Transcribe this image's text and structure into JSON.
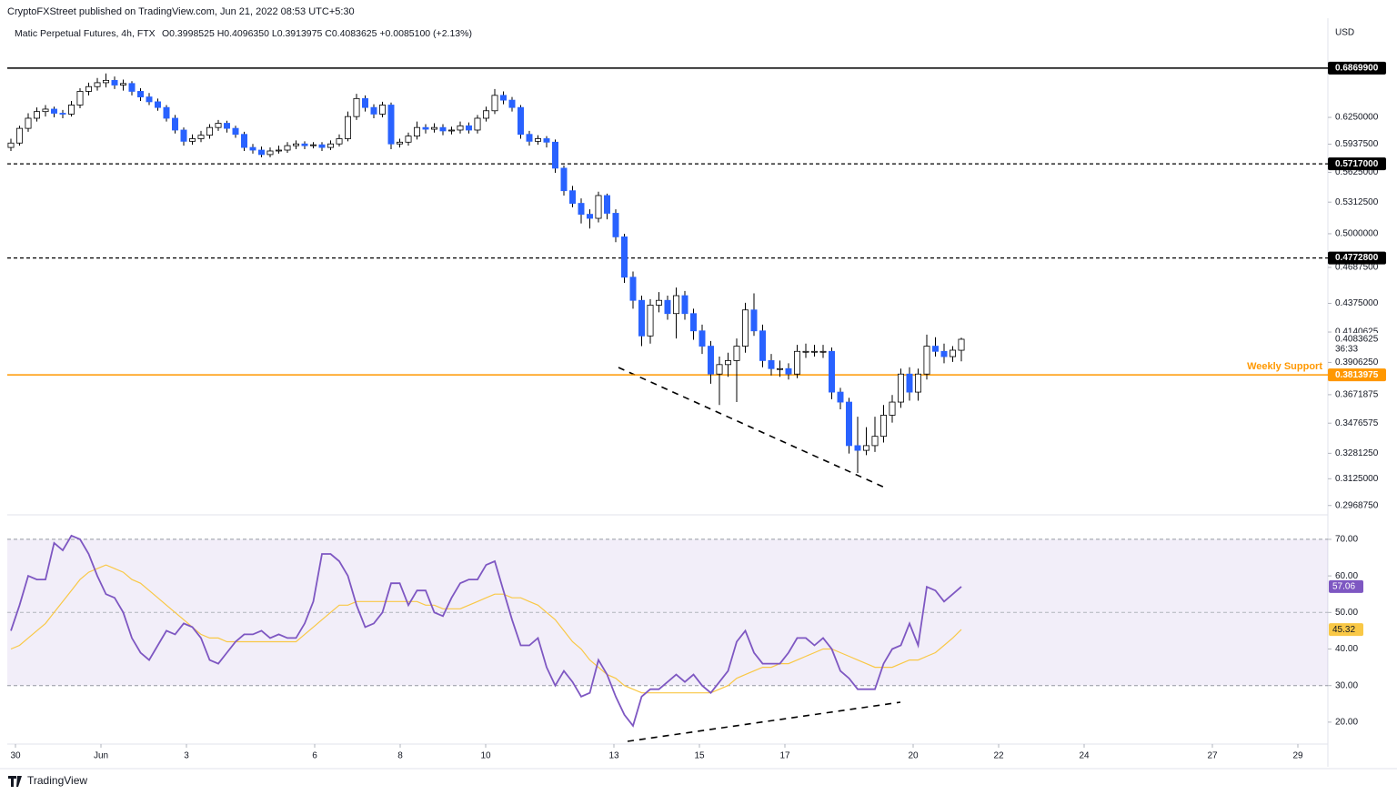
{
  "header": {
    "publisher": "CryptoFXStreet published on TradingView.com, Jun 21, 2022 08:53 UTC+5:30",
    "symbol": "Matic Perpetual Futures, 4h, FTX",
    "ohlc": "O0.3998525 H0.4096350 L0.3913975 C0.4083625 +0.0085100 (+2.13%)",
    "currency": "USD",
    "countdown": "36:33",
    "footer": "TradingView"
  },
  "chart_data": [
    {
      "type": "candlestick",
      "log_scale": true,
      "grid": false,
      "up_color": "#ffffff",
      "down_color": "#2962ff",
      "wick_color": "#000000",
      "ylim": [
        0.2916,
        0.756
      ],
      "yticks": [
        {
          "value": 0.625,
          "label": "0.6250000"
        },
        {
          "value": 0.59375,
          "label": "0.5937500"
        },
        {
          "value": 0.5625,
          "label": "0.5625000"
        },
        {
          "value": 0.53125,
          "label": "0.5312500"
        },
        {
          "value": 0.5,
          "label": "0.5000000"
        },
        {
          "value": 0.46875,
          "label": "0.4687500"
        },
        {
          "value": 0.4375,
          "label": "0.4375000"
        },
        {
          "value": 0.4140625,
          "label": "0.4140625"
        },
        {
          "value": 0.390625,
          "label": "0.3906250"
        },
        {
          "value": 0.3671875,
          "label": "0.3671875"
        },
        {
          "value": 0.3476575,
          "label": "0.3476575"
        },
        {
          "value": 0.328125,
          "label": "0.3281250"
        },
        {
          "value": 0.3125,
          "label": "0.3125000"
        },
        {
          "value": 0.296875,
          "label": "0.2968750"
        }
      ],
      "xticks": [
        {
          "value": "2022-05-30",
          "label": "30"
        },
        {
          "value": "2022-06-01",
          "label": "Jun"
        },
        {
          "value": "2022-06-03",
          "label": "3"
        },
        {
          "value": "2022-06-06",
          "label": "6"
        },
        {
          "value": "2022-06-08",
          "label": "8"
        },
        {
          "value": "2022-06-10",
          "label": "10"
        },
        {
          "value": "2022-06-13",
          "label": "13"
        },
        {
          "value": "2022-06-15",
          "label": "15"
        },
        {
          "value": "2022-06-17",
          "label": "17"
        },
        {
          "value": "2022-06-20",
          "label": "20"
        },
        {
          "value": "2022-06-22",
          "label": "22"
        },
        {
          "value": "2022-06-24",
          "label": "24"
        },
        {
          "value": "2022-06-27",
          "label": "27"
        },
        {
          "value": "2022-06-29",
          "label": "29"
        }
      ],
      "levels": [
        {
          "value": 0.68699,
          "label": "0.6869900",
          "color": "#000000",
          "style": "solid"
        },
        {
          "value": 0.5717,
          "label": "0.5717000",
          "color": "#000000",
          "style": "dashed"
        },
        {
          "value": 0.47728,
          "label": "0.4772800",
          "color": "#000000",
          "style": "dashed"
        },
        {
          "value": 0.3813975,
          "label": "0.3813975",
          "color": "#ff9800",
          "style": "solid",
          "name": "Weekly Support"
        }
      ],
      "last_price": {
        "value": 0.4083625,
        "label": "0.4083625"
      },
      "open": [
        0.59,
        0.595,
        0.612,
        0.624,
        0.632,
        0.635,
        0.63,
        0.629,
        0.64,
        0.657,
        0.663,
        0.668,
        0.671,
        0.665,
        0.667,
        0.657,
        0.65,
        0.644,
        0.637,
        0.624,
        0.61,
        0.597,
        0.6,
        0.604,
        0.613,
        0.618,
        0.612,
        0.605,
        0.59,
        0.587,
        0.582,
        0.586,
        0.587,
        0.592,
        0.594,
        0.592,
        0.593,
        0.59,
        0.594,
        0.6,
        0.626,
        0.648,
        0.637,
        0.629,
        0.64,
        0.594,
        0.596,
        0.603,
        0.613,
        0.611,
        0.613,
        0.609,
        0.61,
        0.615,
        0.61,
        0.624,
        0.633,
        0.652,
        0.646,
        0.637,
        0.605,
        0.597,
        0.6,
        0.596,
        0.567,
        0.543,
        0.53,
        0.519,
        0.515,
        0.538,
        0.52,
        0.497,
        0.46,
        0.44,
        0.411,
        0.436,
        0.44,
        0.429,
        0.444,
        0.429,
        0.415,
        0.403,
        0.382,
        0.389,
        0.392,
        0.403,
        0.432,
        0.415,
        0.392,
        0.386,
        0.386,
        0.382,
        0.399,
        0.399,
        0.399,
        0.399,
        0.369,
        0.362,
        0.333,
        0.33,
        0.333,
        0.339,
        0.353,
        0.362,
        0.382,
        0.369,
        0.382,
        0.403,
        0.399,
        0.395,
        0.3998525
      ],
      "high": [
        0.6,
        0.615,
        0.63,
        0.637,
        0.64,
        0.638,
        0.634,
        0.645,
        0.661,
        0.668,
        0.674,
        0.68,
        0.676,
        0.672,
        0.67,
        0.661,
        0.655,
        0.648,
        0.64,
        0.628,
        0.613,
        0.605,
        0.609,
        0.617,
        0.622,
        0.621,
        0.615,
        0.608,
        0.594,
        0.591,
        0.59,
        0.592,
        0.596,
        0.598,
        0.597,
        0.596,
        0.596,
        0.598,
        0.605,
        0.632,
        0.654,
        0.652,
        0.641,
        0.644,
        0.643,
        0.6,
        0.607,
        0.62,
        0.617,
        0.618,
        0.617,
        0.614,
        0.62,
        0.619,
        0.628,
        0.638,
        0.66,
        0.657,
        0.65,
        0.64,
        0.609,
        0.604,
        0.603,
        0.599,
        0.57,
        0.548,
        0.535,
        0.524,
        0.542,
        0.54,
        0.524,
        0.5,
        0.465,
        0.444,
        0.441,
        0.447,
        0.444,
        0.451,
        0.448,
        0.433,
        0.42,
        0.407,
        0.395,
        0.398,
        0.409,
        0.438,
        0.446,
        0.42,
        0.397,
        0.392,
        0.39,
        0.404,
        0.405,
        0.404,
        0.404,
        0.402,
        0.372,
        0.365,
        0.352,
        0.345,
        0.352,
        0.36,
        0.367,
        0.386,
        0.387,
        0.386,
        0.412,
        0.41,
        0.405,
        0.403,
        0.409635
      ],
      "low": [
        0.586,
        0.592,
        0.608,
        0.62,
        0.626,
        0.625,
        0.624,
        0.626,
        0.636,
        0.652,
        0.658,
        0.662,
        0.66,
        0.658,
        0.652,
        0.645,
        0.64,
        0.633,
        0.62,
        0.606,
        0.592,
        0.593,
        0.596,
        0.6,
        0.609,
        0.607,
        0.601,
        0.586,
        0.583,
        0.579,
        0.579,
        0.583,
        0.584,
        0.588,
        0.588,
        0.589,
        0.586,
        0.587,
        0.591,
        0.597,
        0.622,
        0.632,
        0.624,
        0.625,
        0.588,
        0.59,
        0.592,
        0.599,
        0.606,
        0.607,
        0.604,
        0.605,
        0.606,
        0.606,
        0.606,
        0.62,
        0.629,
        0.641,
        0.632,
        0.6,
        0.592,
        0.593,
        0.59,
        0.562,
        0.538,
        0.526,
        0.51,
        0.505,
        0.511,
        0.514,
        0.492,
        0.455,
        0.433,
        0.403,
        0.405,
        0.43,
        0.424,
        0.409,
        0.424,
        0.408,
        0.397,
        0.375,
        0.36,
        0.38,
        0.362,
        0.398,
        0.411,
        0.387,
        0.381,
        0.38,
        0.378,
        0.379,
        0.394,
        0.395,
        0.394,
        0.364,
        0.357,
        0.328,
        0.316,
        0.327,
        0.329,
        0.335,
        0.348,
        0.358,
        0.363,
        0.363,
        0.378,
        0.395,
        0.39,
        0.391,
        0.3913975
      ],
      "close": [
        0.595,
        0.612,
        0.624,
        0.632,
        0.635,
        0.63,
        0.629,
        0.64,
        0.657,
        0.663,
        0.668,
        0.671,
        0.665,
        0.667,
        0.657,
        0.65,
        0.644,
        0.637,
        0.624,
        0.61,
        0.597,
        0.6,
        0.604,
        0.613,
        0.618,
        0.612,
        0.605,
        0.59,
        0.587,
        0.582,
        0.586,
        0.587,
        0.592,
        0.594,
        0.592,
        0.593,
        0.59,
        0.594,
        0.6,
        0.626,
        0.648,
        0.637,
        0.629,
        0.64,
        0.594,
        0.596,
        0.603,
        0.613,
        0.611,
        0.613,
        0.609,
        0.61,
        0.615,
        0.61,
        0.624,
        0.633,
        0.652,
        0.646,
        0.637,
        0.605,
        0.597,
        0.6,
        0.596,
        0.567,
        0.543,
        0.53,
        0.519,
        0.515,
        0.538,
        0.52,
        0.497,
        0.46,
        0.44,
        0.411,
        0.436,
        0.44,
        0.429,
        0.444,
        0.429,
        0.415,
        0.403,
        0.382,
        0.389,
        0.392,
        0.403,
        0.432,
        0.415,
        0.392,
        0.386,
        0.386,
        0.382,
        0.399,
        0.399,
        0.399,
        0.399,
        0.369,
        0.362,
        0.333,
        0.33,
        0.333,
        0.339,
        0.353,
        0.362,
        0.382,
        0.369,
        0.382,
        0.403,
        0.399,
        0.395,
        0.3999,
        0.4083625
      ]
    },
    {
      "type": "line",
      "ylim": [
        14,
        76.7
      ],
      "band": [
        30,
        70
      ],
      "band_color": "rgba(126,87,194,0.1)",
      "yticks": [
        {
          "value": 70,
          "label": "70.00"
        },
        {
          "value": 60,
          "label": "60.00"
        },
        {
          "value": 50,
          "label": "50.00"
        },
        {
          "value": 40,
          "label": "40.00"
        },
        {
          "value": 30,
          "label": "30.00"
        },
        {
          "value": 20,
          "label": "20.00"
        }
      ],
      "series": [
        {
          "color": "#7e57c2",
          "values": [
            45,
            52,
            60,
            59,
            59,
            69,
            67,
            71,
            70,
            66,
            60,
            55,
            54,
            50,
            43,
            39,
            37,
            41,
            45,
            44,
            47,
            46,
            43,
            37,
            36,
            39,
            42,
            44,
            44,
            45,
            43,
            44,
            43,
            43,
            47,
            53,
            66,
            66,
            64,
            60,
            52,
            46,
            47,
            50,
            58,
            58,
            52,
            56,
            56,
            50,
            49,
            54,
            58,
            59,
            59,
            63,
            64,
            56,
            48,
            41,
            41,
            43,
            35,
            30,
            34,
            31,
            27,
            28,
            37,
            33,
            27,
            22,
            19,
            27,
            29,
            29,
            31,
            33,
            31,
            33,
            30,
            28,
            31,
            34,
            42,
            45,
            39,
            36,
            36,
            36,
            39,
            43,
            43,
            41,
            43,
            40,
            34,
            32,
            29,
            29,
            29,
            36,
            40,
            41,
            47,
            41,
            57,
            56,
            53,
            55,
            57.06
          ]
        },
        {
          "color": "#f9c846",
          "values": [
            40,
            41,
            43,
            45,
            47,
            50,
            53,
            56,
            59,
            61,
            62,
            63,
            62,
            61,
            59,
            58,
            56,
            54,
            52,
            50,
            48,
            46,
            44,
            43,
            43,
            42,
            42,
            42,
            42,
            42,
            42,
            42,
            42,
            42,
            44,
            46,
            48,
            50,
            52,
            52,
            53,
            53,
            53,
            53,
            53,
            53,
            53,
            53,
            52,
            52,
            51,
            51,
            51,
            52,
            53,
            54,
            55,
            55,
            54,
            54,
            53,
            52,
            50,
            48,
            45,
            42,
            40,
            37,
            35,
            33,
            32,
            30,
            29,
            28,
            28,
            28,
            28,
            28,
            28,
            28,
            28,
            28,
            29,
            30,
            32,
            33,
            34,
            35,
            35,
            36,
            36,
            37,
            38,
            39,
            40,
            40,
            39,
            38,
            37,
            36,
            35,
            35,
            35,
            36,
            37,
            37,
            38,
            39,
            41,
            43,
            45.32
          ]
        }
      ]
    }
  ]
}
